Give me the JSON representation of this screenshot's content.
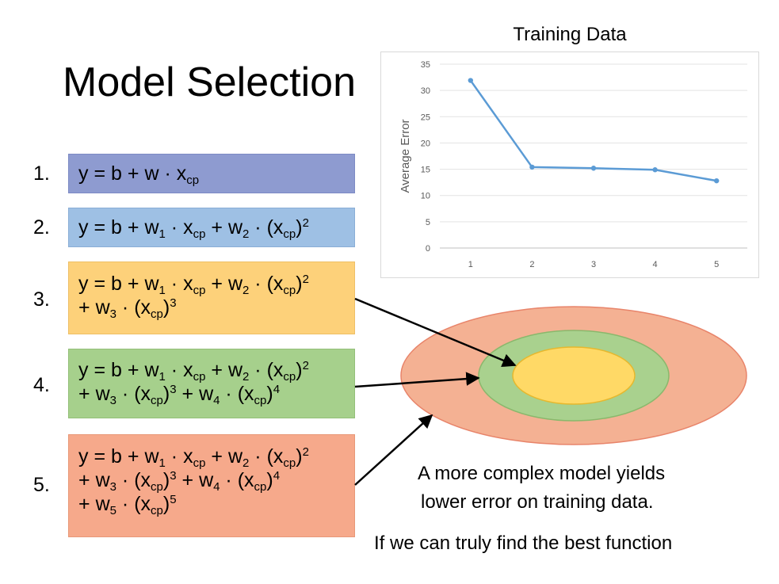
{
  "title": "Model Selection",
  "models": [
    {
      "number": "1.",
      "color": "#8e9bd0"
    },
    {
      "number": "2.",
      "color": "#9ec0e4"
    },
    {
      "number": "3.",
      "color": "#fdd17a"
    },
    {
      "number": "4.",
      "color": "#a6d08c"
    },
    {
      "number": "5.",
      "color": "#f6a98b"
    }
  ],
  "math": {
    "y": "y",
    "b": "b",
    "w": "w",
    "x": "x",
    "cp": "cp",
    "eq": "=",
    "plus": "+",
    "dot": "·",
    "w1": "1",
    "w2": "2",
    "w3": "3",
    "w4": "4",
    "w5": "5",
    "p2": "2",
    "p3": "3",
    "p4": "4",
    "p5": "5"
  },
  "chart_data": {
    "type": "line",
    "title": "Training Data",
    "ylabel": "Average Error",
    "xlabel": "",
    "x": [
      1,
      2,
      3,
      4,
      5
    ],
    "series": [
      {
        "values": [
          31.9,
          15.4,
          15.2,
          14.9,
          12.8
        ],
        "color": "#5b9bd5"
      }
    ],
    "ylim": [
      0,
      35
    ],
    "yticks": [
      0,
      5,
      10,
      15,
      20,
      25,
      30,
      35
    ],
    "grid": true
  },
  "captions": {
    "line1": "A more complex model yields",
    "line2": "lower error on training data.",
    "line3": "If we can truly find the best function"
  },
  "ellipse_colors": {
    "outer": "#f4b193",
    "middle": "#a9d18e",
    "inner": "#ffd966"
  }
}
